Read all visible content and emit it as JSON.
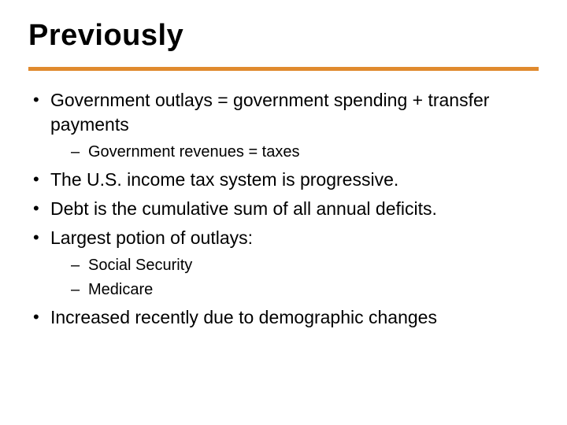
{
  "title": "Previously",
  "rule_color": "#e08a2e",
  "bullets": {
    "b1": "Government outlays = government spending + transfer payments",
    "b1_sub1": "Government revenues = taxes",
    "b2": "The U.S. income tax system is progressive.",
    "b3": "Debt is the cumulative sum of all annual deficits.",
    "b4": "Largest potion of outlays:",
    "b4_sub1": "Social Security",
    "b4_sub2": "Medicare",
    "b5": "Increased recently due to demographic changes"
  }
}
